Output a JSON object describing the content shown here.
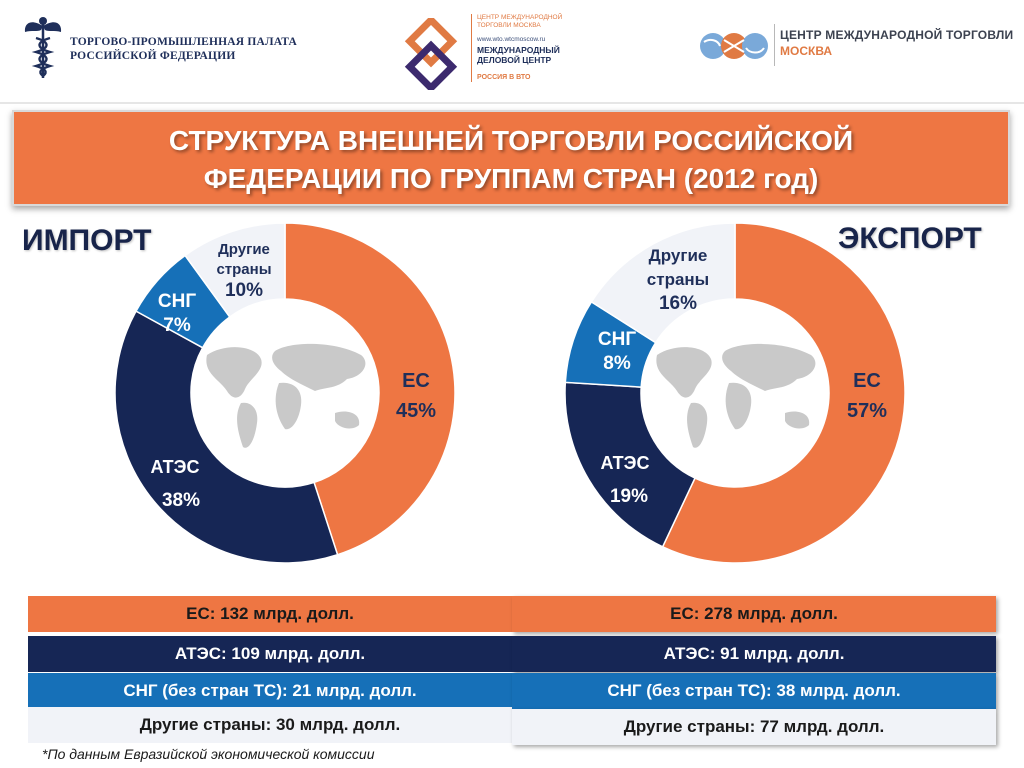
{
  "header": {
    "logo_left": {
      "line1": "ТОРГОВО-ПРОМЫШЛЕННАЯ ПАЛАТА",
      "line2": "РОССИЙСКОЙ ФЕДЕРАЦИИ"
    },
    "logo_mid": {
      "top_line1": "ЦЕНТР МЕЖДУНАРОДНОЙ",
      "top_line2": "ТОРГОВЛИ МОСКВА",
      "url": "www.wto.wtcmoscow.ru",
      "name_line1": "МЕЖДУНАРОДНЫЙ",
      "name_line2": "ДЕЛОВОЙ ЦЕНТР",
      "name_line3": "РОССИЯ В ВТО"
    },
    "logo_right": {
      "line1": "ЦЕНТР МЕЖДУНАРОДНОЙ ТОРГОВЛИ",
      "line2": "МОСКВА"
    }
  },
  "banner": {
    "line1": "СТРУКТУРА ВНЕШНЕЙ ТОРГОВЛИ РОССИЙСКОЙ",
    "line2": "ФЕДЕРАЦИИ ПО ГРУППАМ СТРАН (2012 год)"
  },
  "colors": {
    "eu": "#ee7643",
    "apec": "#162655",
    "cis": "#1670b8",
    "other": "#f1f3f8",
    "world": "#c9c9c9"
  },
  "chart_data": [
    {
      "type": "pie",
      "title": "ИМПОРТ",
      "categories": [
        "ЕС",
        "АТЭС",
        "СНГ",
        "Другие страны"
      ],
      "values": [
        45,
        38,
        7,
        10
      ],
      "value_labels": [
        "45%",
        "38%",
        "7%",
        "10%"
      ]
    },
    {
      "type": "pie",
      "title": "ЭКСПОРТ",
      "categories": [
        "ЕС",
        "АТЭС",
        "СНГ",
        "Другие страны"
      ],
      "values": [
        57,
        19,
        8,
        16
      ],
      "value_labels": [
        "57%",
        "19%",
        "8%",
        "16%"
      ]
    }
  ],
  "import_table": [
    "ЕС: 132 млрд. долл.",
    "АТЭС: 109 млрд. долл.",
    "СНГ (без стран ТС): 21 млрд. долл.",
    "Другие страны: 30 млрд. долл."
  ],
  "export_table": [
    "ЕС: 278 млрд. долл.",
    "АТЭС: 91 млрд. долл.",
    "СНГ (без стран ТС): 38 млрд. долл.",
    "Другие страны: 77 млрд. долл."
  ],
  "footnote": "*По данным Евразийской экономической комиссии"
}
